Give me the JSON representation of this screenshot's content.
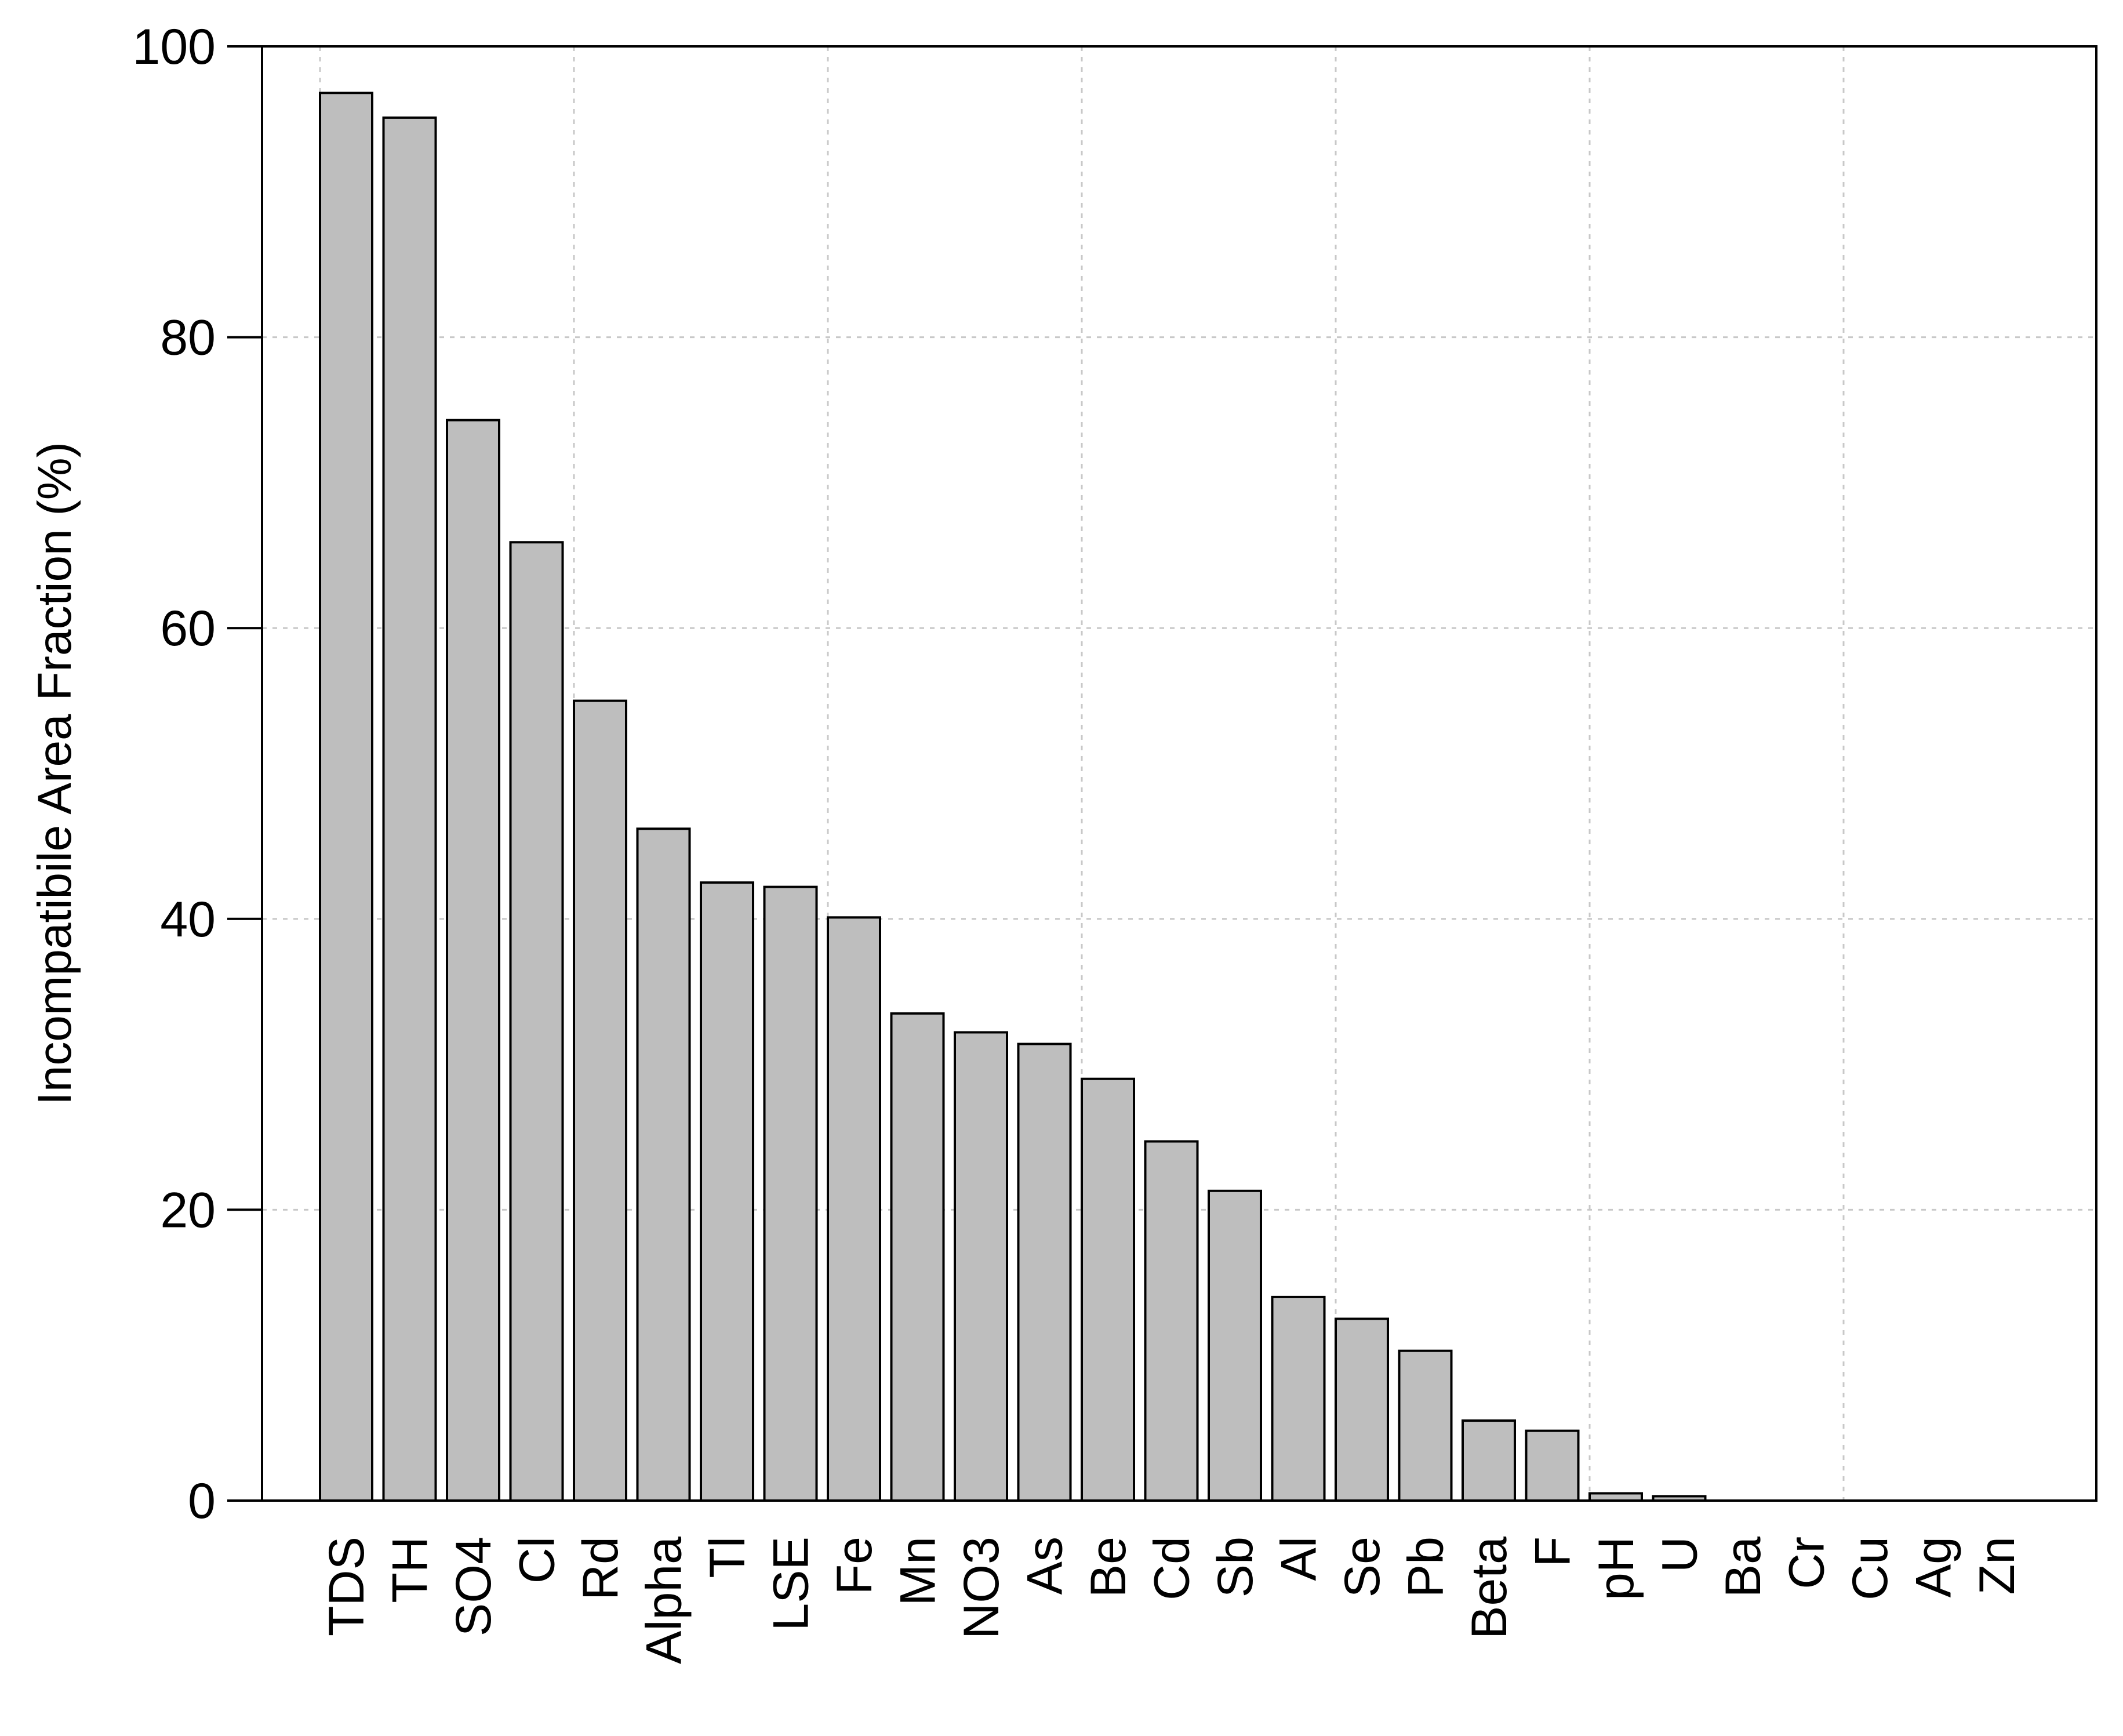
{
  "chart_data": {
    "type": "bar",
    "title": "",
    "xlabel": "",
    "ylabel": "Incompatibile Area Fraction (%)",
    "ylim": [
      0,
      100
    ],
    "yticks": [
      0,
      20,
      40,
      60,
      80,
      100
    ],
    "grid": true,
    "bar_color": "#bebebe",
    "categories": [
      "TDS",
      "TH",
      "SO4",
      "Cl",
      "Rd",
      "Alpha",
      "Tl",
      "LSE",
      "Fe",
      "Mn",
      "NO3",
      "As",
      "Be",
      "Cd",
      "Sb",
      "Al",
      "Se",
      "Pb",
      "Beta",
      "F",
      "pH",
      "U",
      "Ba",
      "Cr",
      "Cu",
      "Ag",
      "Zn"
    ],
    "values": [
      96.8,
      95.1,
      74.3,
      65.9,
      55.0,
      46.2,
      42.5,
      42.2,
      40.1,
      33.5,
      32.2,
      31.4,
      29.0,
      24.7,
      21.3,
      14.0,
      12.5,
      10.3,
      5.5,
      4.8,
      0.5,
      0.3,
      0,
      0,
      0,
      0,
      0
    ]
  }
}
